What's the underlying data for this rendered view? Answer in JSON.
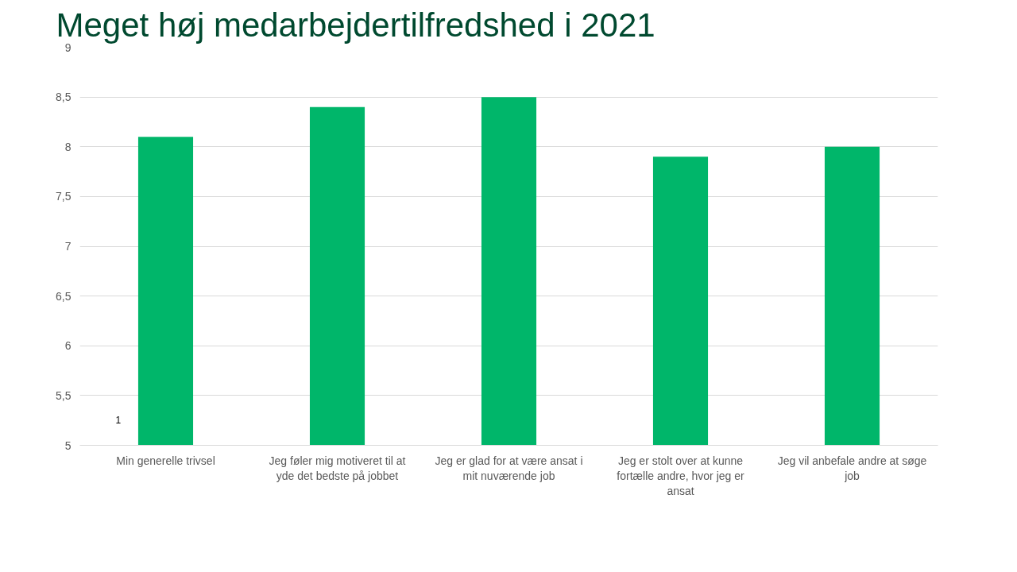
{
  "chart_data": {
    "type": "bar",
    "title": "Meget høj medarbejdertilfredshed i 2021",
    "categories": [
      "Min generelle trivsel",
      "Jeg føler mig motiveret til at yde det bedste på jobbet",
      "Jeg er glad for at være ansat i mit nuværende job",
      "Jeg er stolt over at kunne fortælle andre, hvor jeg er ansat",
      "Jeg vil anbefale andre at søge job"
    ],
    "values": [
      8.1,
      8.4,
      8.5,
      7.9,
      8.0
    ],
    "color": "#00b66a",
    "ylim": [
      5,
      9
    ],
    "yticks": [
      {
        "value": 5,
        "label": "5"
      },
      {
        "value": 5.5,
        "label": "5,5"
      },
      {
        "value": 6,
        "label": "6"
      },
      {
        "value": 6.5,
        "label": "6,5"
      },
      {
        "value": 7,
        "label": "7"
      },
      {
        "value": 7.5,
        "label": "7,5"
      },
      {
        "value": 8,
        "label": "8"
      },
      {
        "value": 8.5,
        "label": "8,5"
      },
      {
        "value": 9,
        "label": "9"
      }
    ],
    "grid": "y",
    "annotations": [
      "1"
    ]
  }
}
